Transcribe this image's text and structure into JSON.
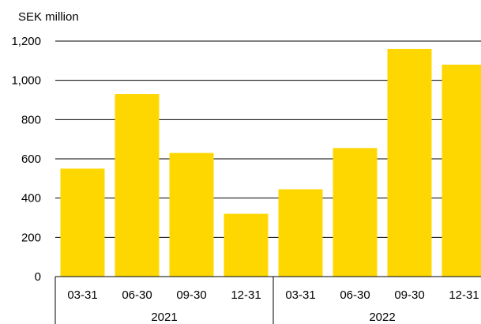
{
  "chart_data": {
    "type": "bar",
    "ylabel": "SEK million",
    "ylim": [
      0,
      1200
    ],
    "yticks": [
      0,
      200,
      400,
      600,
      800,
      1000,
      1200
    ],
    "ytick_labels": [
      "0",
      "200",
      "400",
      "600",
      "800",
      "1,000",
      "1,200"
    ],
    "categories": [
      "03-31",
      "06-30",
      "09-30",
      "12-31",
      "03-31",
      "06-30",
      "09-30",
      "12-31"
    ],
    "groups": [
      {
        "label": "2021",
        "count": 4
      },
      {
        "label": "2022",
        "count": 4
      }
    ],
    "values": [
      550,
      930,
      630,
      320,
      445,
      655,
      1160,
      1080
    ],
    "grid": true,
    "bar_color": "#FFD700",
    "grid_color": "#000000"
  }
}
